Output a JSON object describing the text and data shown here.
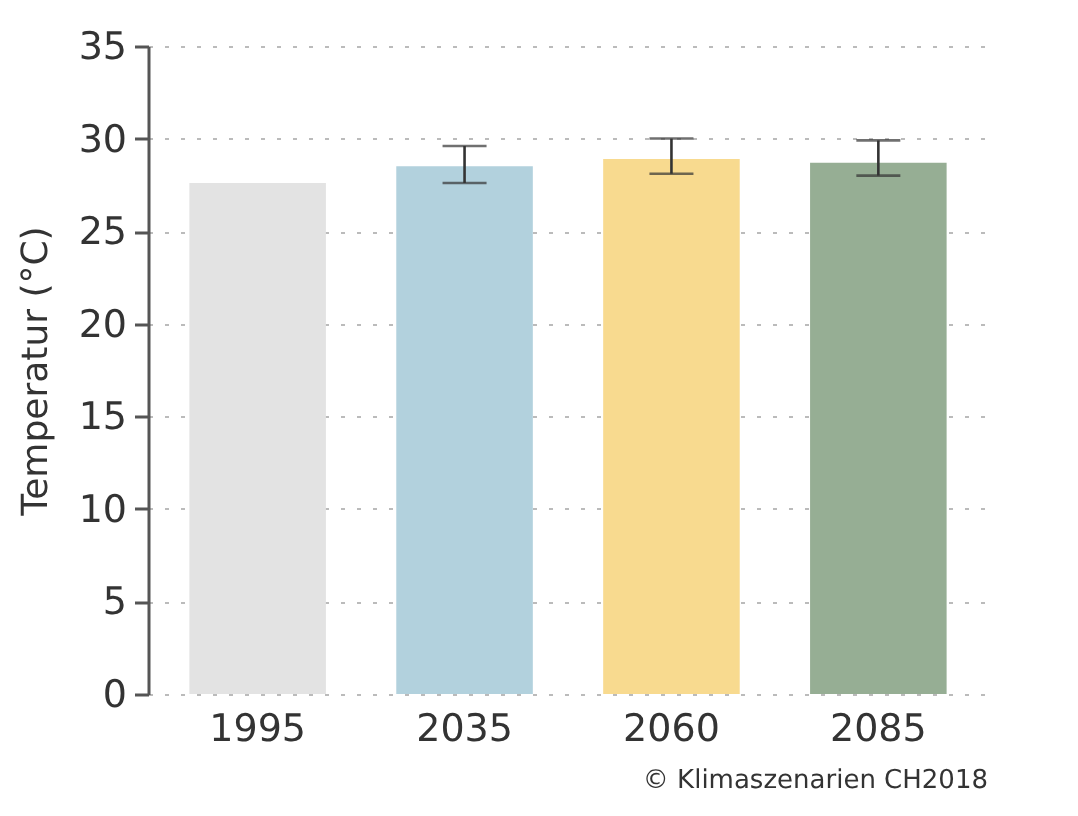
{
  "chart_data": {
    "type": "bar",
    "ylabel": "Temperatur (°C)",
    "categories": [
      "1995",
      "2035",
      "2060",
      "2085"
    ],
    "values": [
      27.6,
      28.5,
      28.9,
      28.7
    ],
    "colors": [
      "#e3e3e3",
      "#b2d1dd",
      "#f8da8f",
      "#96ae94"
    ],
    "errors": [
      null,
      [
        27.6,
        29.6
      ],
      [
        28.1,
        30.0
      ],
      [
        28.0,
        29.9
      ]
    ],
    "ylim": [
      0,
      35
    ],
    "yticks": [
      0,
      5,
      10,
      15,
      20,
      25,
      30,
      35
    ],
    "grid": "y",
    "annotations": [
      "© Klimaszenarien CH2018"
    ]
  }
}
